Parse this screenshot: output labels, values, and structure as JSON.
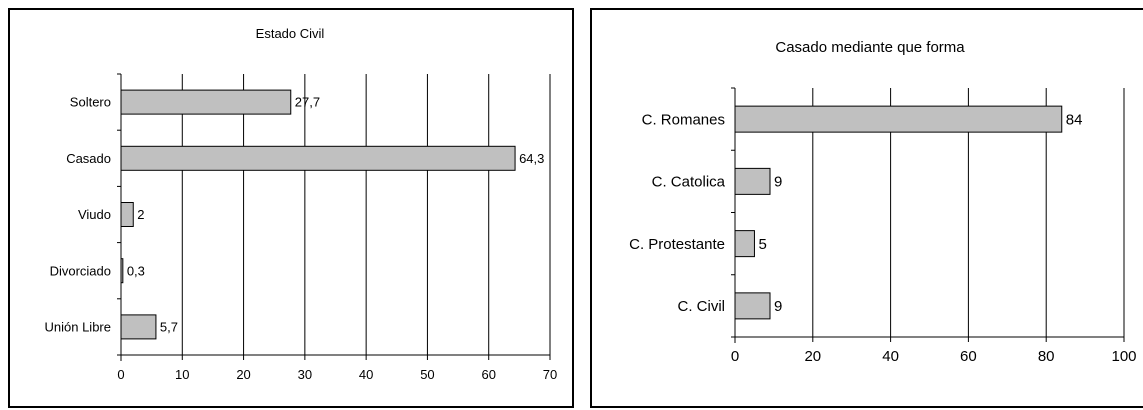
{
  "chart_data": [
    {
      "type": "bar",
      "orientation": "horizontal",
      "title": "Estado Civil",
      "categories": [
        "Soltero",
        "Casado",
        "Viudo",
        "Divorciado",
        "Unión Libre"
      ],
      "values": [
        27.7,
        64.3,
        2,
        0.3,
        5.7
      ],
      "value_labels": [
        "27,7",
        "64,3",
        "2",
        "0,3",
        "5,7"
      ],
      "xlim": [
        0,
        70
      ],
      "xticks": [
        "0",
        "10",
        "20",
        "30",
        "40",
        "50",
        "60",
        "70"
      ],
      "xtick_values": [
        0,
        10,
        20,
        30,
        40,
        50,
        60,
        70
      ],
      "grid": true,
      "bar_color": "#c0c0c0",
      "xlabel": "",
      "ylabel": ""
    },
    {
      "type": "bar",
      "orientation": "horizontal",
      "title": "Casado mediante que forma",
      "categories": [
        "C. Romanes",
        "C. Catolica",
        "C. Protestante",
        "C. Civil"
      ],
      "values": [
        84,
        9,
        5,
        9
      ],
      "value_labels": [
        "84",
        "9",
        "5",
        "9"
      ],
      "xlim": [
        0,
        100
      ],
      "xticks": [
        "0",
        "20",
        "40",
        "60",
        "80",
        "100"
      ],
      "xtick_values": [
        0,
        20,
        40,
        60,
        80,
        100
      ],
      "grid": true,
      "bar_color": "#c0c0c0",
      "xlabel": "",
      "ylabel": ""
    }
  ]
}
